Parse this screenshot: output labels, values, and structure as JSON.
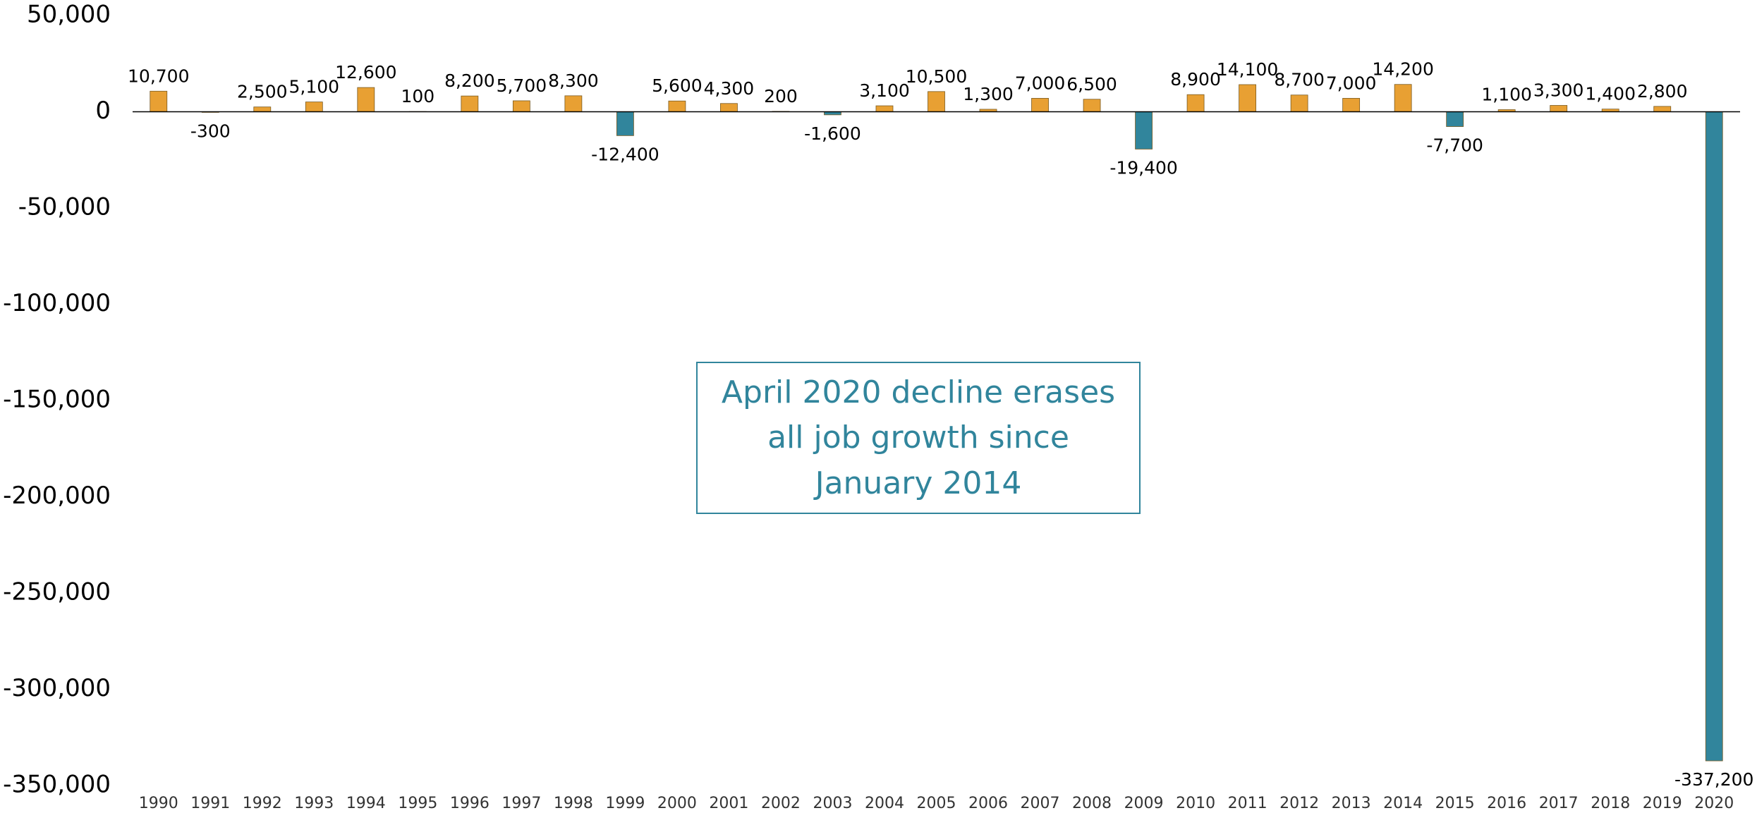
{
  "chart_data": {
    "type": "bar",
    "categories": [
      "1990",
      "1991",
      "1992",
      "1993",
      "1994",
      "1995",
      "1996",
      "1997",
      "1998",
      "1999",
      "2000",
      "2001",
      "2002",
      "2003",
      "2004",
      "2005",
      "2006",
      "2007",
      "2008",
      "2009",
      "2010",
      "2011",
      "2012",
      "2013",
      "2014",
      "2015",
      "2016",
      "2017",
      "2018",
      "2019",
      "2020"
    ],
    "values": [
      10700,
      -300,
      2500,
      5100,
      12600,
      100,
      8200,
      5700,
      8300,
      -12400,
      5600,
      4300,
      200,
      -1600,
      3100,
      10500,
      1300,
      7000,
      6500,
      -19400,
      8900,
      14100,
      8700,
      7000,
      14200,
      -7700,
      1100,
      3300,
      1400,
      2800,
      -337200
    ],
    "value_labels": [
      "10,700",
      "-300",
      "2,500",
      "5,100",
      "12,600",
      "100",
      "8,200",
      "5,700",
      "8,300",
      "-12,400",
      "5,600",
      "4,300",
      "200",
      "-1,600",
      "3,100",
      "10,500",
      "1,300",
      "7,000",
      "6,500",
      "-19,400",
      "8,900",
      "14,100",
      "8,700",
      "7,000",
      "14,200",
      "-7,700",
      "1,100",
      "3,300",
      "1,400",
      "2,800",
      "-337,200"
    ],
    "positive_color": "#e8a033",
    "negative_color": "#31859c",
    "ylim": [
      -350000,
      50000
    ],
    "yticks": [
      {
        "value": 50000,
        "label": "50,000"
      },
      0,
      {
        "value": -50000,
        "label": "-50,000"
      },
      {
        "value": -100000,
        "label": "-100,000"
      },
      {
        "value": -150000,
        "label": "-150,000"
      },
      {
        "value": -200000,
        "label": "-200,000"
      },
      {
        "value": -250000,
        "label": "-250,000"
      },
      {
        "value": -300000,
        "label": "-300,000"
      },
      {
        "value": -350000,
        "label": "-350,000"
      }
    ],
    "grid": false,
    "annotation": [
      "April 2020 decline erases",
      "all job growth since",
      "January 2014"
    ]
  }
}
